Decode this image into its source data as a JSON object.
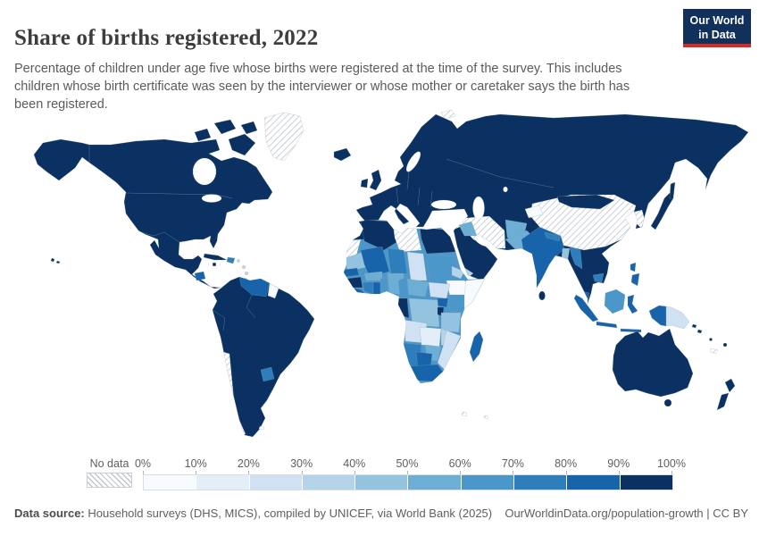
{
  "header": {
    "title": "Share of births registered, 2022",
    "logo": {
      "line1": "Our World",
      "line2": "in Data"
    }
  },
  "subtitle": "Percentage of children under age five whose births were registered at the time of the survey. This includes children whose birth certificate was seen by the interviewer or whose mother or caretaker says the birth has been registered.",
  "legend": {
    "no_data_label": "No data",
    "tick_labels": [
      "0%",
      "10%",
      "20%",
      "30%",
      "40%",
      "50%",
      "60%",
      "70%",
      "80%",
      "90%",
      "100%"
    ],
    "colors": [
      "#f7fbff",
      "#e3eef9",
      "#cfe1f2",
      "#b5d4e9",
      "#93c3df",
      "#6daed5",
      "#4b97c9",
      "#2f7ebc",
      "#1864aa",
      "#0a3161"
    ]
  },
  "footer": {
    "source_label": "Data source:",
    "source_text": " Household surveys (DHS, MICS), compiled by UNICEF, via World Bank (2025)",
    "link_text": "OurWorldinData.org/population-growth | CC BY"
  },
  "map": {
    "regions": {
      "north-america": "#0a3161",
      "canada-arctic": "#0a3161",
      "greenland": "no-data",
      "honduras": "#1864aa",
      "cuba": "#0a3161",
      "jamaica": "#0a3161",
      "hispaniola": "#2f7ebc",
      "puerto-rico": "#b5d4e9",
      "lesser-antilles": "#b5d4e9",
      "hawaii": "#0a3161",
      "south-america": "#0a3161",
      "venezuela": "#1864aa",
      "guyana": "#f7fbff",
      "paraguay": "#2f7ebc",
      "chile": "no-data",
      "falkland-islands": "no-data",
      "eurasia": "#0a3161",
      "iceland": "#0a3161",
      "uk": "#0a3161",
      "ireland": "#0a3161",
      "svalbard": "no-data",
      "china": "no-data",
      "mongolia": "#0a3161",
      "korea": "no-data",
      "kyrgyzstan-tajikistan": "#f7fbff",
      "iran": "no-data",
      "syria": "no-data",
      "iraq": "#6daed5",
      "yemen": "#b5d4e9",
      "afghanistan": "#6daed5",
      "pakistan": "#6daed5",
      "india": "#1864aa",
      "nepal": "#2f7ebc",
      "bangladesh": "#93c3df",
      "sri-lanka": "#0a3161",
      "myanmar": "#2f7ebc",
      "cambodia": "#2f7ebc",
      "malaysia": "#1864aa",
      "japan": "#0a3161",
      "sakhalin": "#0a3161",
      "philippines": "#1864aa",
      "sumatra": "#1864aa",
      "borneo": "#4b97c9",
      "java": "#1864aa",
      "sulawesi": "#1864aa",
      "lesser-sunda": "#1864aa",
      "new-guinea-west": "#1864aa",
      "papua-new-guinea": "#cfe1f2",
      "solomon-islands": "#0a3161",
      "vanuatu": "#0a3161",
      "fiji": "#0a3161",
      "new-caledonia": "no-data",
      "australia": "#0a3161",
      "tasmania": "#0a3161",
      "new-zealand": "#0a3161",
      "french-southern": "no-data",
      "africa-base": "#4b97c9",
      "morocco": "#0a3161",
      "western-sahara": "no-data",
      "algeria": "#0a3161",
      "libya": "no-data",
      "egypt": "#0a3161",
      "mauritania": "#93c3df",
      "mali": "#1864aa",
      "niger": "#2f7ebc",
      "chad": "#cfe1f2",
      "sudan": "#4b97c9",
      "eritrea": "#b5d4e9",
      "ethiopia": "#f7fbff",
      "somalia": "#f7fbff",
      "senegal": "#1864aa",
      "guinea": "#0a3161",
      "sierra-leone-liberia": "#1864aa",
      "cote-divoire": "#2f7ebc",
      "ghana": "#1864aa",
      "burkina-faso": "#6daed5",
      "benin-togo": "#4b97c9",
      "nigeria": "#6daed5",
      "cameroon": "#4b97c9",
      "central-african-republic": "#6daed5",
      "south-sudan": "#cfe1f2",
      "uganda": "#1864aa",
      "kenya": "#4b97c9",
      "gabon-congo": "#0a3161",
      "dr-congo": "#93c3df",
      "rwanda-burundi": "#0a3161",
      "tanzania": "#93c3df",
      "angola": "#cfe1f2",
      "zambia": "#e3eef9",
      "malawi": "#b5d4e9",
      "mozambique": "#cfe1f2",
      "zimbabwe": "#6daed5",
      "namibia": "#2f7ebc",
      "botswana": "#1864aa",
      "south-africa": "#1864aa",
      "madagascar": "#1864aa"
    }
  },
  "chart_data": {
    "type": "choropleth_map",
    "title": "Share of births registered, 2022",
    "unit": "% of children under five with registered births",
    "legend_position": "bottom",
    "bins": [
      {
        "label": "0%-10%",
        "color": "#f7fbff"
      },
      {
        "label": "10%-20%",
        "color": "#e3eef9"
      },
      {
        "label": "20%-30%",
        "color": "#cfe1f2"
      },
      {
        "label": "30%-40%",
        "color": "#b5d4e9"
      },
      {
        "label": "40%-50%",
        "color": "#93c3df"
      },
      {
        "label": "50%-60%",
        "color": "#6daed5"
      },
      {
        "label": "60%-70%",
        "color": "#4b97c9"
      },
      {
        "label": "70%-80%",
        "color": "#2f7ebc"
      },
      {
        "label": "80%-90%",
        "color": "#1864aa"
      },
      {
        "label": "90%-100%",
        "color": "#0a3161"
      },
      {
        "label": "No data",
        "color": "hatched"
      }
    ],
    "regions": {
      "United States": "90-100%",
      "Canada": "90-100%",
      "Mexico": "90-100%",
      "Greenland": "No data",
      "Cuba": "90-100%",
      "Haiti / Dominican Republic": "70-80%",
      "Honduras": "80-90%",
      "Brazil": "90-100%",
      "Venezuela": "80-90%",
      "Guyana": "0-10%",
      "Paraguay": "70-80%",
      "Chile": "No data",
      "Argentina": "90-100%",
      "Colombia": "90-100%",
      "Peru": "90-100%",
      "Europe (most countries)": "90-100%",
      "Russia": "90-100%",
      "Turkey": "90-100%",
      "Syria": "No data",
      "Iraq": "50-60%",
      "Iran": "No data",
      "Saudi Arabia": "90-100%",
      "Yemen": "30-40%",
      "Kazakhstan": "90-100%",
      "Kyrgyzstan / Tajikistan": "0-10%",
      "Afghanistan": "50-60%",
      "Pakistan": "50-60%",
      "India": "80-90%",
      "Nepal": "70-80%",
      "Bangladesh": "40-50%",
      "Sri Lanka": "90-100%",
      "China": "No data",
      "Mongolia": "90-100%",
      "North & South Korea": "No data",
      "Japan": "90-100%",
      "Myanmar": "70-80%",
      "Thailand": "90-100%",
      "Vietnam": "90-100%",
      "Cambodia": "70-80%",
      "Malaysia": "80-90%",
      "Indonesia": "80-90%",
      "Philippines": "80-90%",
      "Papua New Guinea": "20-30%",
      "Australia": "90-100%",
      "New Zealand": "90-100%",
      "Morocco": "90-100%",
      "Algeria": "90-100%",
      "Libya": "No data",
      "Egypt": "90-100%",
      "Western Sahara": "No data",
      "Mauritania": "40-50%",
      "Mali": "80-90%",
      "Niger": "70-80%",
      "Chad": "20-30%",
      "Sudan": "60-70%",
      "Eritrea": "30-40%",
      "Ethiopia": "0-10%",
      "Somalia": "0-10%",
      "Senegal": "80-90%",
      "Guinea": "90-100%",
      "Sierra Leone / Liberia": "80-90%",
      "Cote d'Ivoire": "70-80%",
      "Ghana": "80-90%",
      "Burkina Faso": "50-60%",
      "Benin / Togo": "60-70%",
      "Nigeria": "50-60%",
      "Cameroon": "60-70%",
      "Central African Republic": "50-60%",
      "South Sudan": "20-30%",
      "Uganda": "80-90%",
      "Kenya": "60-70%",
      "Gabon / Congo": "90-100%",
      "DR Congo": "40-50%",
      "Rwanda / Burundi": "90-100%",
      "Tanzania": "40-50%",
      "Angola": "20-30%",
      "Zambia": "10-20%",
      "Malawi": "30-40%",
      "Mozambique": "20-30%",
      "Zimbabwe": "50-60%",
      "Namibia": "70-80%",
      "Botswana": "80-90%",
      "South Africa": "80-90%",
      "Madagascar": "80-90%"
    }
  }
}
